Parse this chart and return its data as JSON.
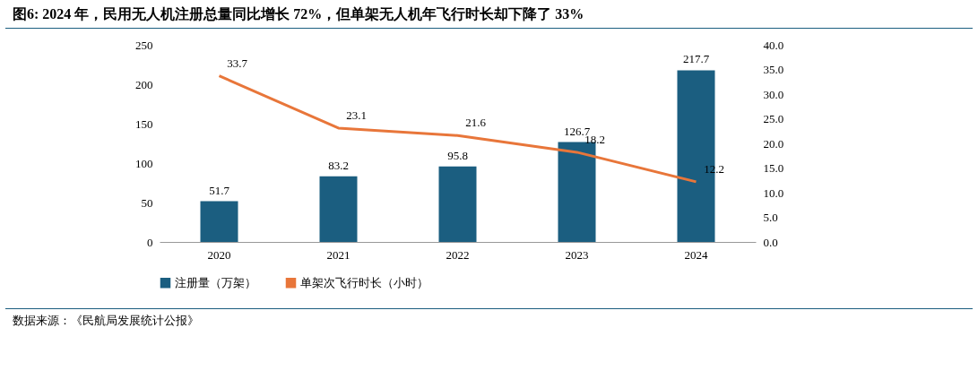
{
  "chart_data": {
    "type": "bar",
    "title": "图6:  2024 年，民用无人机注册总量同比增长 72%，但单架无人机年飞行时长却下降了 33%",
    "categories": [
      "2020",
      "2021",
      "2022",
      "2023",
      "2024"
    ],
    "series": [
      {
        "name": "注册量（万架）",
        "color": "#1b5e80",
        "values": [
          51.7,
          83.2,
          95.8,
          126.7,
          217.7
        ]
      },
      {
        "name": "单架次飞行时长（小时）",
        "type": "line",
        "axis": "y2",
        "color": "#e8763a",
        "values": [
          33.7,
          23.1,
          21.6,
          18.2,
          12.2
        ]
      }
    ],
    "ylim": [
      0,
      250
    ],
    "yticks": [
      0,
      50,
      100,
      150,
      200,
      250
    ],
    "y2lim": [
      0,
      40
    ],
    "y2ticks": [
      {
        "value": 0,
        "label": "0.0"
      },
      {
        "value": 5,
        "label": "5.0"
      },
      {
        "value": 10,
        "label": "10.0"
      },
      {
        "value": 15,
        "label": "15.0"
      },
      {
        "value": 20,
        "label": "20.0"
      },
      {
        "value": 25,
        "label": "25.0"
      },
      {
        "value": 30,
        "label": "30.0"
      },
      {
        "value": 35,
        "label": "35.0"
      },
      {
        "value": 40,
        "label": "40.0"
      }
    ],
    "data_labels": true,
    "legend": "bottom",
    "grid": false,
    "marker": "none",
    "line_style": "solid",
    "annotations": [
      "数据来源：《民航局发展统计公报》"
    ]
  }
}
